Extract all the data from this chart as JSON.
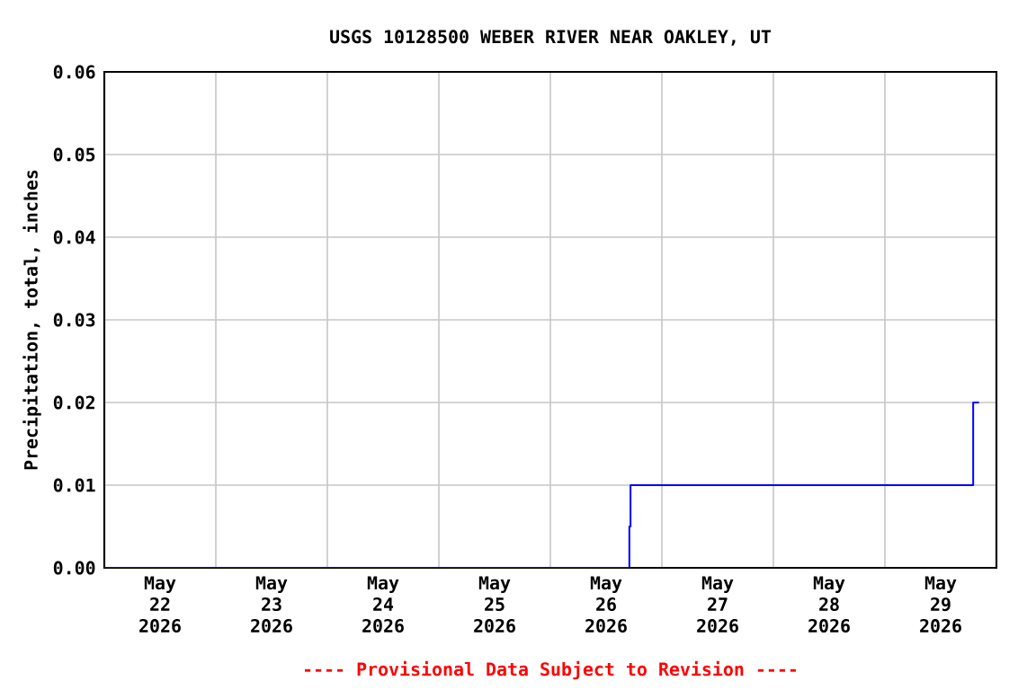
{
  "chart_data": {
    "type": "step",
    "title": "USGS 10128500 WEBER RIVER NEAR OAKLEY, UT",
    "ylabel": "Precipitation, total, inches",
    "annotations": [
      "---- Provisional Data Subject to Revision ----"
    ],
    "x": [
      "2026-05-22T00:00",
      "2026-05-26T16:45",
      "2026-05-26T17:00",
      "2026-05-26T17:15",
      "2026-05-29T18:45",
      "2026-05-29T19:00",
      "2026-05-29T20:15"
    ],
    "series": [
      {
        "color": "#0000ff",
        "values": [
          0,
          0,
          0.005,
          0.01,
          0.01,
          0.02,
          0.02
        ]
      }
    ],
    "xlim": [
      "2026-05-22T00:00",
      "2026-05-30T00:00"
    ],
    "xticks": [
      {
        "value": "2026-05-22T12:00",
        "label": "May 22 2026"
      },
      {
        "value": "2026-05-23T00:00",
        "label": null
      },
      {
        "value": "2026-05-23T12:00",
        "label": "May 23 2026"
      },
      {
        "value": "2026-05-24T00:00",
        "label": null
      },
      {
        "value": "2026-05-24T12:00",
        "label": "May 24 2026"
      },
      {
        "value": "2026-05-25T00:00",
        "label": null
      },
      {
        "value": "2026-05-25T12:00",
        "label": "May 25 2026"
      },
      {
        "value": "2026-05-26T00:00",
        "label": null
      },
      {
        "value": "2026-05-26T12:00",
        "label": "May 26 2026"
      },
      {
        "value": "2026-05-27T00:00",
        "label": null
      },
      {
        "value": "2026-05-27T12:00",
        "label": "May 27 2026"
      },
      {
        "value": "2026-05-28T00:00",
        "label": null
      },
      {
        "value": "2026-05-28T12:00",
        "label": "May 28 2026"
      },
      {
        "value": "2026-05-29T00:00",
        "label": null
      },
      {
        "value": "2026-05-29T12:00",
        "label": "May 29 2026"
      }
    ],
    "ylim": [
      0,
      0.06
    ],
    "yticks": [
      {
        "value": 0,
        "label": "0.00"
      },
      {
        "value": 0.01,
        "label": "0.01"
      },
      {
        "value": 0.02,
        "label": "0.02"
      },
      {
        "value": 0.03,
        "label": "0.03"
      },
      {
        "value": 0.04,
        "label": "0.04"
      },
      {
        "value": 0.05,
        "label": "0.05"
      },
      {
        "value": 0.06,
        "label": "0.06"
      }
    ],
    "grid": true,
    "marker": "none",
    "line_style": "solid"
  }
}
